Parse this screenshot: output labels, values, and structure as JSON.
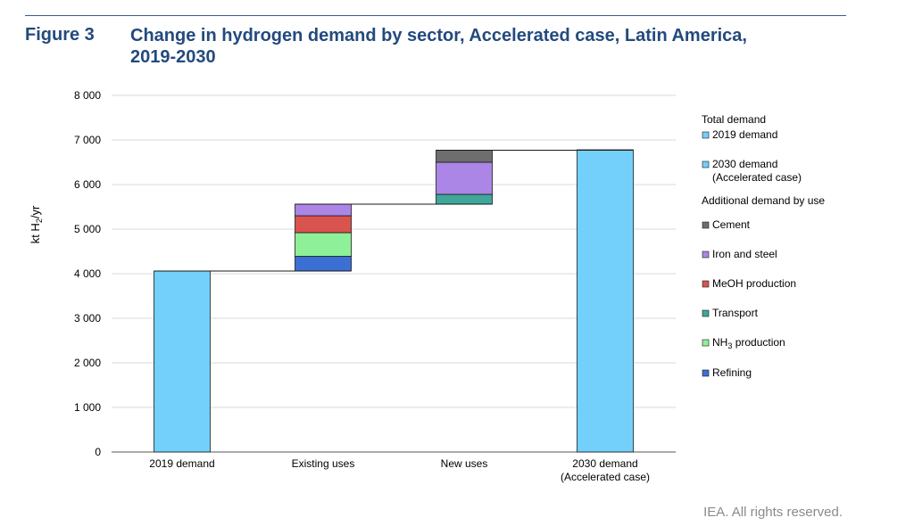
{
  "figure": {
    "label": "Figure 3",
    "title_line1": "Change in hydrogen demand by sector, Accelerated case, Latin America,",
    "title_line2": "2019-2030",
    "credit": "IEA. All rights reserved."
  },
  "chart_data": {
    "type": "bar",
    "subtype": "waterfall",
    "title": "Change in hydrogen demand by sector, Accelerated case, Latin America, 2019-2030",
    "ylabel": "kt H2/yr",
    "ylabel_parts": {
      "pre": "kt H",
      "sub": "2",
      "post": "/yr"
    },
    "ylim": [
      0,
      8000
    ],
    "yticks": [
      0,
      1000,
      2000,
      3000,
      4000,
      5000,
      6000,
      7000,
      8000
    ],
    "ytick_labels": [
      "0",
      "1 000",
      "2 000",
      "3 000",
      "4 000",
      "5 000",
      "6 000",
      "7 000",
      "8 000"
    ],
    "categories": [
      {
        "line1": "2019 demand",
        "line2": ""
      },
      {
        "line1": "Existing uses",
        "line2": ""
      },
      {
        "line1": "New uses",
        "line2": ""
      },
      {
        "line1": "2030 demand",
        "line2": "(Accelerated case)"
      }
    ],
    "totals": [
      {
        "name": "2019 demand",
        "category_index": 0,
        "value": 4060
      },
      {
        "name": "2030 demand (Accelerated case)",
        "category_index": 3,
        "value": 6780
      }
    ],
    "increments": [
      {
        "name": "Refining",
        "category_index": 1,
        "value": 330
      },
      {
        "name": "NH3 production",
        "category_index": 1,
        "value": 530
      },
      {
        "name": "MeOH production",
        "category_index": 1,
        "value": 380
      },
      {
        "name": "Iron and steel",
        "category_index": 1,
        "value": 260
      },
      {
        "name": "Transport",
        "category_index": 2,
        "value": 220
      },
      {
        "name": "Iron and steel",
        "category_index": 2,
        "value": 720
      },
      {
        "name": "Cement",
        "category_index": 2,
        "value": 270
      }
    ],
    "legend": {
      "position": "right",
      "group1_title": "Total demand",
      "group2_title": "Additional demand by use",
      "group1": [
        {
          "label": "2019 demand",
          "label2": "",
          "color": "#72d0fb"
        },
        {
          "label": "2030 demand",
          "label2": "(Accelerated case)",
          "color": "#72d0fb"
        }
      ],
      "group2": [
        {
          "label": "Cement",
          "color": "#6e6e6e"
        },
        {
          "label": "Iron and steel",
          "color": "#ab86e6"
        },
        {
          "label": "MeOH production",
          "color": "#d9534f"
        },
        {
          "label": "Transport",
          "color": "#3ea79a"
        },
        {
          "label": "NH3 production",
          "label_pre": "NH",
          "label_sub": "3",
          "label_post": " production",
          "color": "#8ff09a"
        },
        {
          "label": "Refining",
          "color": "#3c6fd4"
        }
      ]
    },
    "colors": {
      "Refining": "#3c6fd4",
      "NH3 production": "#8ff09a",
      "MeOH production": "#d9534f",
      "Iron and steel": "#ab86e6",
      "Transport": "#3ea79a",
      "Cement": "#6e6e6e",
      "total": "#72d0fb"
    }
  }
}
